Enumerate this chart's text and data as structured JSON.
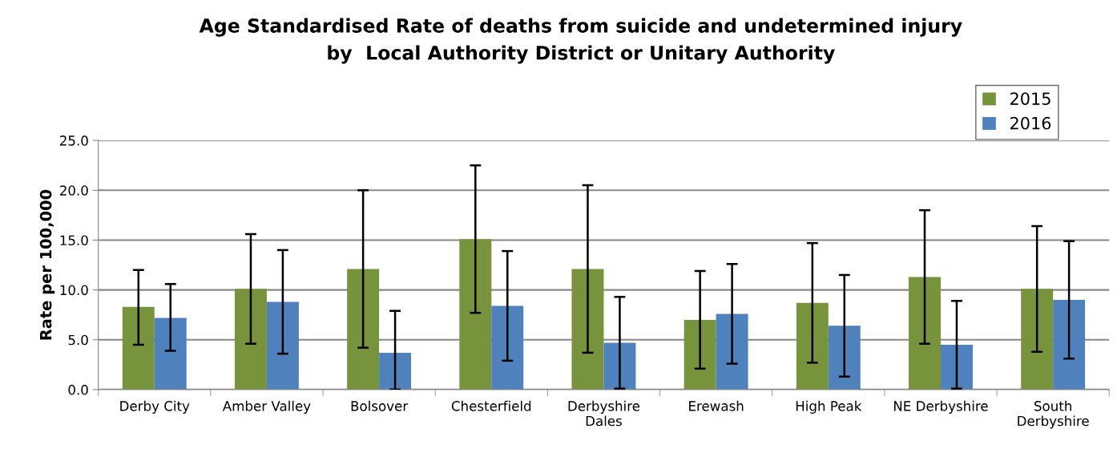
{
  "chart_data": {
    "type": "bar",
    "title": "Age Standardised Rate of deaths from suicide and undetermined injury\nby  Local Authority District or Unitary Authority",
    "ylabel": "Rate per 100,000",
    "categories": [
      "Derby City",
      "Amber Valley",
      "Bolsover",
      "Chesterfield",
      "Derbyshire\nDales",
      "Erewash",
      "High Peak",
      "NE Derbyshire",
      "South\nDerbyshire"
    ],
    "series": [
      {
        "name": "2015",
        "color": "#77933c",
        "values": [
          8.3,
          10.1,
          12.1,
          15.1,
          12.1,
          7.0,
          8.7,
          11.3,
          10.1
        ],
        "errors": [
          [
            4.5,
            12.0
          ],
          [
            4.6,
            15.6
          ],
          [
            4.2,
            20.0
          ],
          [
            7.7,
            22.5
          ],
          [
            3.7,
            20.5
          ],
          [
            2.1,
            11.9
          ],
          [
            2.7,
            14.7
          ],
          [
            4.6,
            18.0
          ],
          [
            3.8,
            16.4
          ]
        ]
      },
      {
        "name": "2016",
        "color": "#4f81bd",
        "values": [
          7.2,
          8.8,
          3.7,
          8.4,
          4.7,
          7.6,
          6.4,
          4.5,
          9.0
        ],
        "errors": [
          [
            3.9,
            10.6
          ],
          [
            3.6,
            14.0
          ],
          [
            0.0,
            7.9
          ],
          [
            2.9,
            13.9
          ],
          [
            0.1,
            9.3
          ],
          [
            2.6,
            12.6
          ],
          [
            1.3,
            11.5
          ],
          [
            0.1,
            8.9
          ],
          [
            3.1,
            14.9
          ]
        ]
      }
    ],
    "ylim": [
      0,
      25
    ],
    "yticks": [
      {
        "value": 0,
        "label": "0.0"
      },
      {
        "value": 5,
        "label": "5.0"
      },
      {
        "value": 10,
        "label": "10.0"
      },
      {
        "value": 15,
        "label": "15.0"
      },
      {
        "value": 20,
        "label": "20.0"
      },
      {
        "value": 25,
        "label": "25.0"
      }
    ],
    "grid": "y",
    "legend": "top right"
  }
}
